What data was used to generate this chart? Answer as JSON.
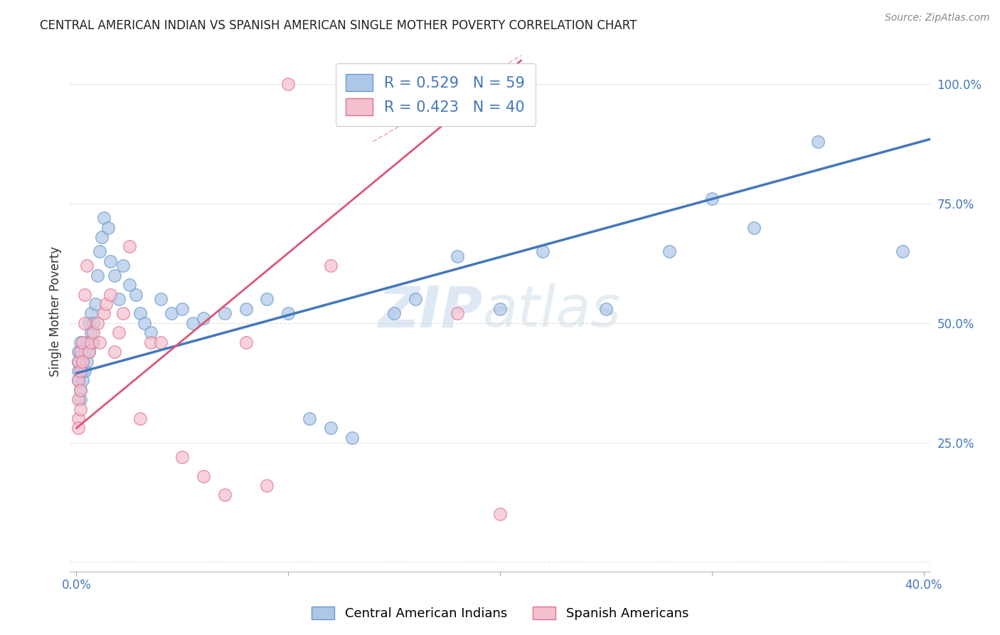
{
  "title": "CENTRAL AMERICAN INDIAN VS SPANISH AMERICAN SINGLE MOTHER POVERTY CORRELATION CHART",
  "source": "Source: ZipAtlas.com",
  "xlabel_blue": "Central American Indians",
  "xlabel_pink": "Spanish Americans",
  "ylabel": "Single Mother Poverty",
  "xlim": [
    -0.003,
    0.403
  ],
  "ylim": [
    -0.02,
    1.07
  ],
  "R_blue": 0.529,
  "N_blue": 59,
  "R_pink": 0.423,
  "N_pink": 40,
  "blue_color": "#aec6e8",
  "pink_color": "#f5c0ce",
  "blue_edge_color": "#6699cc",
  "pink_edge_color": "#e07090",
  "blue_line_color": "#4477bb",
  "pink_line_color": "#dd5577",
  "blue_x": [
    0.001,
    0.001,
    0.001,
    0.001,
    0.002,
    0.002,
    0.002,
    0.002,
    0.003,
    0.003,
    0.003,
    0.004,
    0.004,
    0.005,
    0.005,
    0.006,
    0.006,
    0.007,
    0.007,
    0.008,
    0.008,
    0.009,
    0.01,
    0.011,
    0.012,
    0.013,
    0.015,
    0.016,
    0.018,
    0.02,
    0.022,
    0.025,
    0.028,
    0.03,
    0.032,
    0.035,
    0.04,
    0.045,
    0.05,
    0.055,
    0.06,
    0.07,
    0.08,
    0.09,
    0.1,
    0.11,
    0.12,
    0.13,
    0.15,
    0.16,
    0.18,
    0.2,
    0.22,
    0.25,
    0.28,
    0.3,
    0.32,
    0.35,
    0.39
  ],
  "blue_y": [
    0.42,
    0.44,
    0.38,
    0.4,
    0.43,
    0.46,
    0.36,
    0.34,
    0.42,
    0.4,
    0.38,
    0.44,
    0.4,
    0.46,
    0.42,
    0.5,
    0.44,
    0.48,
    0.52,
    0.46,
    0.5,
    0.54,
    0.6,
    0.65,
    0.68,
    0.72,
    0.7,
    0.63,
    0.6,
    0.55,
    0.62,
    0.58,
    0.56,
    0.52,
    0.5,
    0.48,
    0.55,
    0.52,
    0.53,
    0.5,
    0.51,
    0.52,
    0.53,
    0.55,
    0.52,
    0.3,
    0.28,
    0.26,
    0.52,
    0.55,
    0.64,
    0.53,
    0.65,
    0.53,
    0.65,
    0.76,
    0.7,
    0.88,
    0.65
  ],
  "pink_x": [
    0.001,
    0.001,
    0.001,
    0.001,
    0.001,
    0.002,
    0.002,
    0.002,
    0.002,
    0.003,
    0.003,
    0.004,
    0.004,
    0.005,
    0.006,
    0.007,
    0.008,
    0.01,
    0.011,
    0.013,
    0.014,
    0.016,
    0.018,
    0.02,
    0.022,
    0.025,
    0.03,
    0.035,
    0.04,
    0.05,
    0.06,
    0.07,
    0.08,
    0.09,
    0.1,
    0.12,
    0.14,
    0.16,
    0.18,
    0.2
  ],
  "pink_y": [
    0.42,
    0.38,
    0.3,
    0.28,
    0.34,
    0.44,
    0.4,
    0.36,
    0.32,
    0.46,
    0.42,
    0.5,
    0.56,
    0.62,
    0.44,
    0.46,
    0.48,
    0.5,
    0.46,
    0.52,
    0.54,
    0.56,
    0.44,
    0.48,
    0.52,
    0.66,
    0.3,
    0.46,
    0.46,
    0.22,
    0.18,
    0.14,
    0.46,
    0.16,
    1.0,
    0.62,
    1.0,
    1.0,
    0.52,
    0.1
  ],
  "blue_line_x": [
    0.0,
    0.403
  ],
  "blue_line_y": [
    0.395,
    0.885
  ],
  "pink_line_x": [
    0.0,
    0.21
  ],
  "pink_line_y": [
    0.28,
    1.05
  ],
  "watermark_zip": "ZIP",
  "watermark_atlas": "atlas",
  "grid_color": "#d8d8d8",
  "background_color": "#ffffff"
}
